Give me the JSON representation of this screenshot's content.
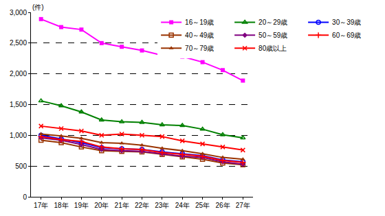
{
  "chart_data": {
    "type": "line",
    "ylabel": "(件)",
    "categories": [
      "17年",
      "18年",
      "19年",
      "20年",
      "21年",
      "22年",
      "23年",
      "24年",
      "25年",
      "26年",
      "27年"
    ],
    "series": [
      {
        "name": "16～19歳",
        "color": "#ff00ff",
        "marker": "square",
        "values": [
          2890,
          2760,
          2720,
          2500,
          2440,
          2380,
          2300,
          2280,
          2190,
          2060,
          1890
        ]
      },
      {
        "name": "20～29歳",
        "color": "#008000",
        "marker": "triangle-up-open",
        "values": [
          1560,
          1480,
          1380,
          1250,
          1220,
          1210,
          1170,
          1160,
          1100,
          1010,
          960
        ]
      },
      {
        "name": "30～39歳",
        "color": "#0000ff",
        "marker": "circle-open",
        "values": [
          1000,
          940,
          880,
          800,
          780,
          770,
          730,
          700,
          670,
          600,
          570
        ]
      },
      {
        "name": "40～49歳",
        "color": "#993300",
        "marker": "square-open",
        "values": [
          920,
          880,
          810,
          750,
          740,
          730,
          690,
          650,
          610,
          550,
          520
        ]
      },
      {
        "name": "50～59歳",
        "color": "#800080",
        "marker": "diamond",
        "values": [
          960,
          920,
          850,
          770,
          750,
          740,
          700,
          660,
          640,
          570,
          530
        ]
      },
      {
        "name": "60～69歳",
        "color": "#ff0000",
        "marker": "cross-thin-open",
        "values": [
          980,
          930,
          900,
          810,
          780,
          770,
          720,
          690,
          660,
          590,
          560
        ]
      },
      {
        "name": "70～79歳",
        "color": "#993300",
        "marker": "triangle-up",
        "values": [
          1020,
          990,
          950,
          880,
          870,
          840,
          790,
          750,
          700,
          640,
          610
        ]
      },
      {
        "name": "80歳以上",
        "color": "#ff0000",
        "marker": "x-thin-open",
        "values": [
          1150,
          1110,
          1070,
          1000,
          1020,
          1000,
          980,
          910,
          860,
          810,
          760
        ]
      }
    ],
    "ylim": [
      0,
      3000
    ],
    "yticks": [
      0,
      500,
      {
        "value": 1000,
        "label": "1,000"
      },
      {
        "value": 1500,
        "label": "1,500"
      },
      {
        "value": 2000,
        "label": "2,000"
      },
      {
        "value": 2500,
        "label": "2,500"
      },
      {
        "value": 3000,
        "label": "3,000"
      }
    ],
    "grid": true,
    "legend": "upper right",
    "line_style": "solid"
  }
}
